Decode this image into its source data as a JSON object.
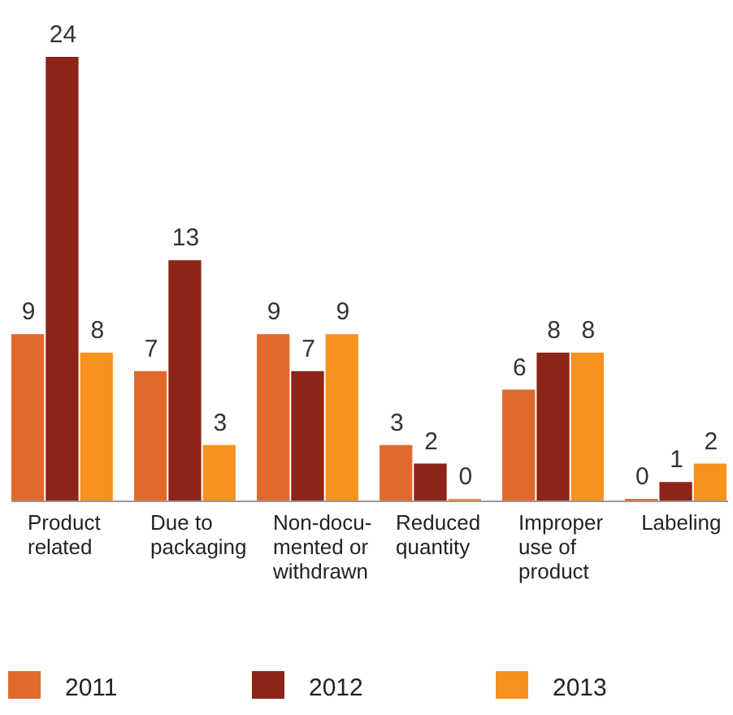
{
  "chart_data": {
    "type": "bar",
    "categories": [
      "Product\nrelated",
      "Due to\npackaging",
      "Non-docu-\nmented or\nwithdrawn",
      "Reduced\nquantity",
      "Improper\nuse of\nproduct",
      "Labeling"
    ],
    "series": [
      {
        "name": "2011",
        "color": "#e06a2c",
        "values": [
          9,
          7,
          9,
          3,
          6,
          0
        ]
      },
      {
        "name": "2012",
        "color": "#8c2418",
        "values": [
          24,
          13,
          7,
          2,
          8,
          1
        ]
      },
      {
        "name": "2013",
        "color": "#f7921e",
        "values": [
          8,
          3,
          9,
          0,
          8,
          2
        ]
      }
    ],
    "data_labels": true,
    "legend": "bottom",
    "grid": false
  }
}
